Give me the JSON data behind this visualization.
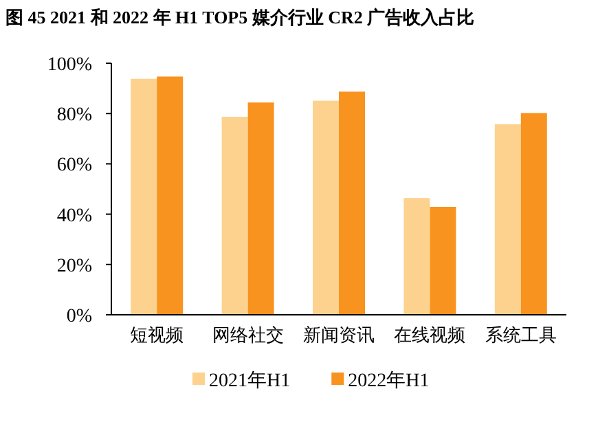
{
  "chart_data": {
    "type": "bar",
    "title": "图 45 2021 和 2022 年 H1 TOP5 媒介行业 CR2 广告收入占比",
    "categories": [
      "短视频",
      "网络社交",
      "新闻资讯",
      "在线视频",
      "系统工具"
    ],
    "series": [
      {
        "name": "2021年H1",
        "color": "#fdd28e",
        "values": [
          93.8,
          78.7,
          85.1,
          46.4,
          75.8
        ]
      },
      {
        "name": "2022年H1",
        "color": "#f7931e",
        "values": [
          94.7,
          84.4,
          88.7,
          42.9,
          80.2
        ]
      }
    ],
    "ylim": [
      0,
      100
    ],
    "yticks": [
      {
        "value": 0,
        "label": "0%"
      },
      {
        "value": 20,
        "label": "20%"
      },
      {
        "value": 40,
        "label": "40%"
      },
      {
        "value": 60,
        "label": "60%"
      },
      {
        "value": 80,
        "label": "80%"
      },
      {
        "value": 100,
        "label": "100%"
      }
    ],
    "legend": "bottom",
    "grid": false
  }
}
